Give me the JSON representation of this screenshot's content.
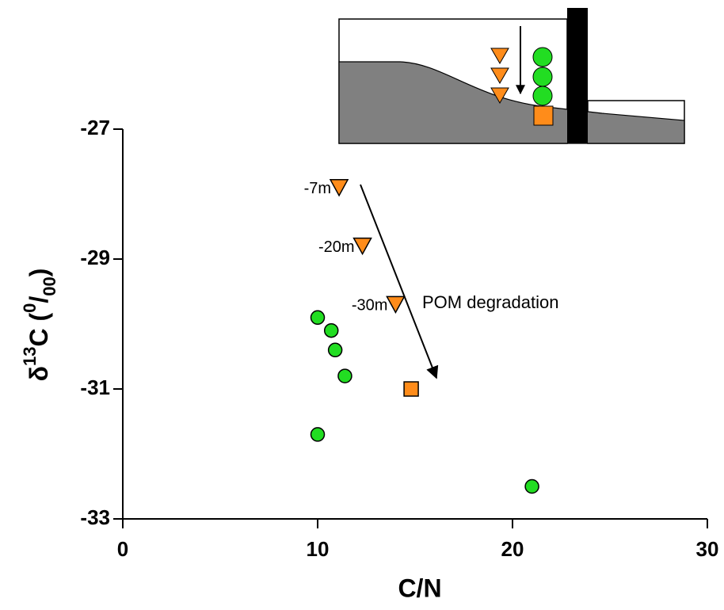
{
  "chart_data": {
    "type": "scatter",
    "x_label": "C/N",
    "y_label": [
      {
        "text": "δ"
      },
      {
        "text": "13",
        "pos": "sup"
      },
      {
        "text": "C  ("
      },
      {
        "text": "0",
        "pos": "sup"
      },
      {
        "text": "/"
      },
      {
        "text": "00",
        "pos": "sub"
      },
      {
        "text": ")"
      }
    ],
    "xlim": [
      0,
      30
    ],
    "xticks": [
      0,
      10,
      20,
      30
    ],
    "ylim": [
      -33,
      -27
    ],
    "yticks": [
      -27,
      -29,
      -31,
      -33
    ],
    "series": [
      {
        "marker": "triangle-down",
        "color": "#ff8c1a",
        "x": [
          11.1,
          12.3,
          14.0
        ],
        "values": [
          -27.9,
          -28.8,
          -29.7
        ],
        "labels": [
          "-7m",
          "-20m",
          "-30m"
        ]
      },
      {
        "marker": "square",
        "color": "#ff8c1a",
        "x": [
          14.8
        ],
        "values": [
          -31.0
        ]
      },
      {
        "marker": "circle",
        "color": "#22dd22",
        "x": [
          10.0,
          10.7,
          10.9,
          11.4,
          10.0,
          21.0
        ],
        "values": [
          -29.9,
          -30.1,
          -30.4,
          -30.8,
          -31.7,
          -32.5
        ]
      }
    ],
    "annotations": [
      {
        "text": "POM degradation"
      }
    ]
  }
}
